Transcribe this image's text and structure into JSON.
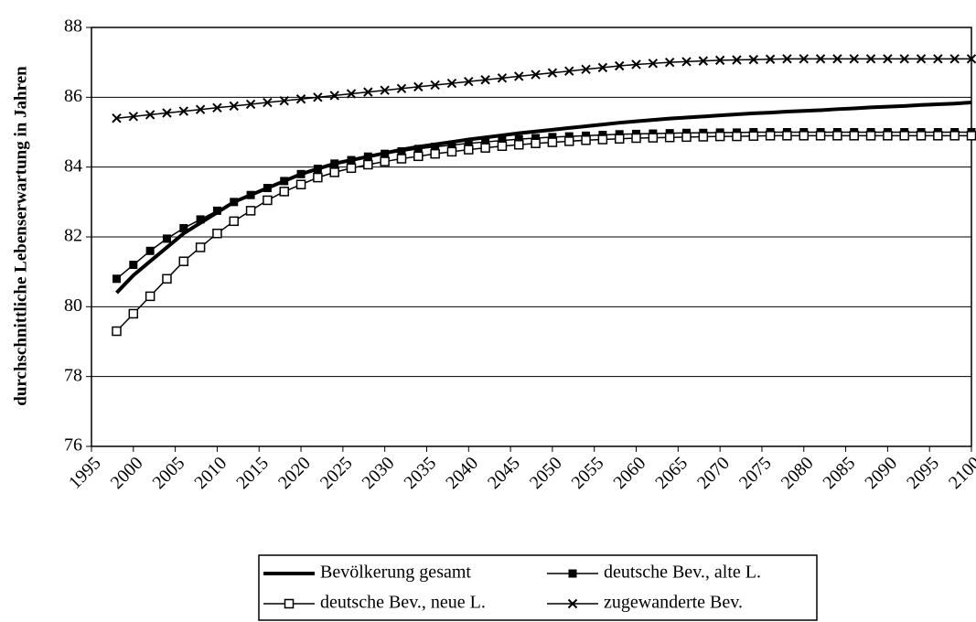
{
  "chart_data": {
    "type": "line",
    "y_label": "durchschnittliche Lebenserwartung in Jahren",
    "x": [
      1998,
      2000,
      2002,
      2004,
      2006,
      2008,
      2010,
      2012,
      2014,
      2016,
      2018,
      2020,
      2022,
      2024,
      2026,
      2028,
      2030,
      2032,
      2034,
      2036,
      2038,
      2040,
      2042,
      2044,
      2046,
      2048,
      2050,
      2052,
      2054,
      2056,
      2058,
      2060,
      2062,
      2064,
      2066,
      2068,
      2070,
      2072,
      2074,
      2076,
      2078,
      2080,
      2082,
      2084,
      2086,
      2088,
      2090,
      2092,
      2094,
      2096,
      2098,
      2100
    ],
    "series": [
      {
        "name": "Bevölkerung gesamt",
        "color": "#000000",
        "marker": "none",
        "line_width": 4,
        "values": [
          80.4,
          80.9,
          81.3,
          81.7,
          82.1,
          82.4,
          82.7,
          83.0,
          83.2,
          83.4,
          83.6,
          83.8,
          83.95,
          84.1,
          84.2,
          84.3,
          84.4,
          84.5,
          84.58,
          84.65,
          84.72,
          84.79,
          84.85,
          84.91,
          84.97,
          85.02,
          85.07,
          85.12,
          85.17,
          85.22,
          85.27,
          85.31,
          85.35,
          85.39,
          85.42,
          85.45,
          85.48,
          85.51,
          85.54,
          85.56,
          85.59,
          85.61,
          85.63,
          85.66,
          85.68,
          85.71,
          85.73,
          85.75,
          85.78,
          85.8,
          85.82,
          85.85
        ]
      },
      {
        "name": "deutsche Bev., alte L.",
        "color": "#000000",
        "marker": "filled-square",
        "line_width": 1.5,
        "values": [
          80.8,
          81.2,
          81.6,
          81.95,
          82.25,
          82.5,
          82.75,
          83.0,
          83.2,
          83.4,
          83.6,
          83.8,
          83.95,
          84.1,
          84.2,
          84.3,
          84.38,
          84.45,
          84.52,
          84.58,
          84.63,
          84.68,
          84.72,
          84.76,
          84.8,
          84.83,
          84.86,
          84.88,
          84.9,
          84.92,
          84.94,
          84.95,
          84.96,
          84.97,
          84.98,
          84.98,
          84.99,
          84.99,
          85.0,
          85.0,
          85.0,
          85.0,
          85.0,
          85.0,
          85.0,
          85.0,
          85.0,
          85.0,
          85.0,
          85.0,
          85.0,
          85.0
        ]
      },
      {
        "name": "deutsche Bev., neue L.",
        "color": "#000000",
        "marker": "open-square",
        "line_width": 1.5,
        "values": [
          79.3,
          79.8,
          80.3,
          80.8,
          81.3,
          81.7,
          82.1,
          82.45,
          82.75,
          83.05,
          83.3,
          83.5,
          83.7,
          83.85,
          83.97,
          84.07,
          84.16,
          84.24,
          84.31,
          84.38,
          84.44,
          84.5,
          84.55,
          84.6,
          84.64,
          84.68,
          84.71,
          84.74,
          84.77,
          84.79,
          84.81,
          84.83,
          84.84,
          84.85,
          84.86,
          84.87,
          84.88,
          84.88,
          84.89,
          84.9,
          84.9,
          84.9,
          84.9,
          84.9,
          84.9,
          84.9,
          84.9,
          84.9,
          84.9,
          84.9,
          84.9,
          84.9
        ]
      },
      {
        "name": "zugewanderte Bev.",
        "color": "#000000",
        "marker": "cross",
        "line_width": 1.5,
        "values": [
          85.4,
          85.45,
          85.5,
          85.55,
          85.6,
          85.65,
          85.7,
          85.75,
          85.8,
          85.85,
          85.9,
          85.95,
          86.0,
          86.05,
          86.1,
          86.15,
          86.2,
          86.25,
          86.3,
          86.35,
          86.4,
          86.45,
          86.5,
          86.55,
          86.6,
          86.65,
          86.7,
          86.75,
          86.8,
          86.85,
          86.9,
          86.94,
          86.97,
          87.0,
          87.02,
          87.04,
          87.06,
          87.07,
          87.08,
          87.09,
          87.1,
          87.1,
          87.1,
          87.1,
          87.1,
          87.1,
          87.1,
          87.1,
          87.1,
          87.1,
          87.1,
          87.1
        ]
      }
    ],
    "xlim": [
      1995,
      2100
    ],
    "xticks": [
      1995,
      2000,
      2005,
      2010,
      2015,
      2020,
      2025,
      2030,
      2035,
      2040,
      2045,
      2050,
      2055,
      2060,
      2065,
      2070,
      2075,
      2080,
      2085,
      2090,
      2095,
      2100
    ],
    "ylim": [
      76,
      88
    ],
    "yticks": [
      76,
      78,
      80,
      82,
      84,
      86,
      88
    ],
    "grid": true,
    "legend": "bottom"
  }
}
